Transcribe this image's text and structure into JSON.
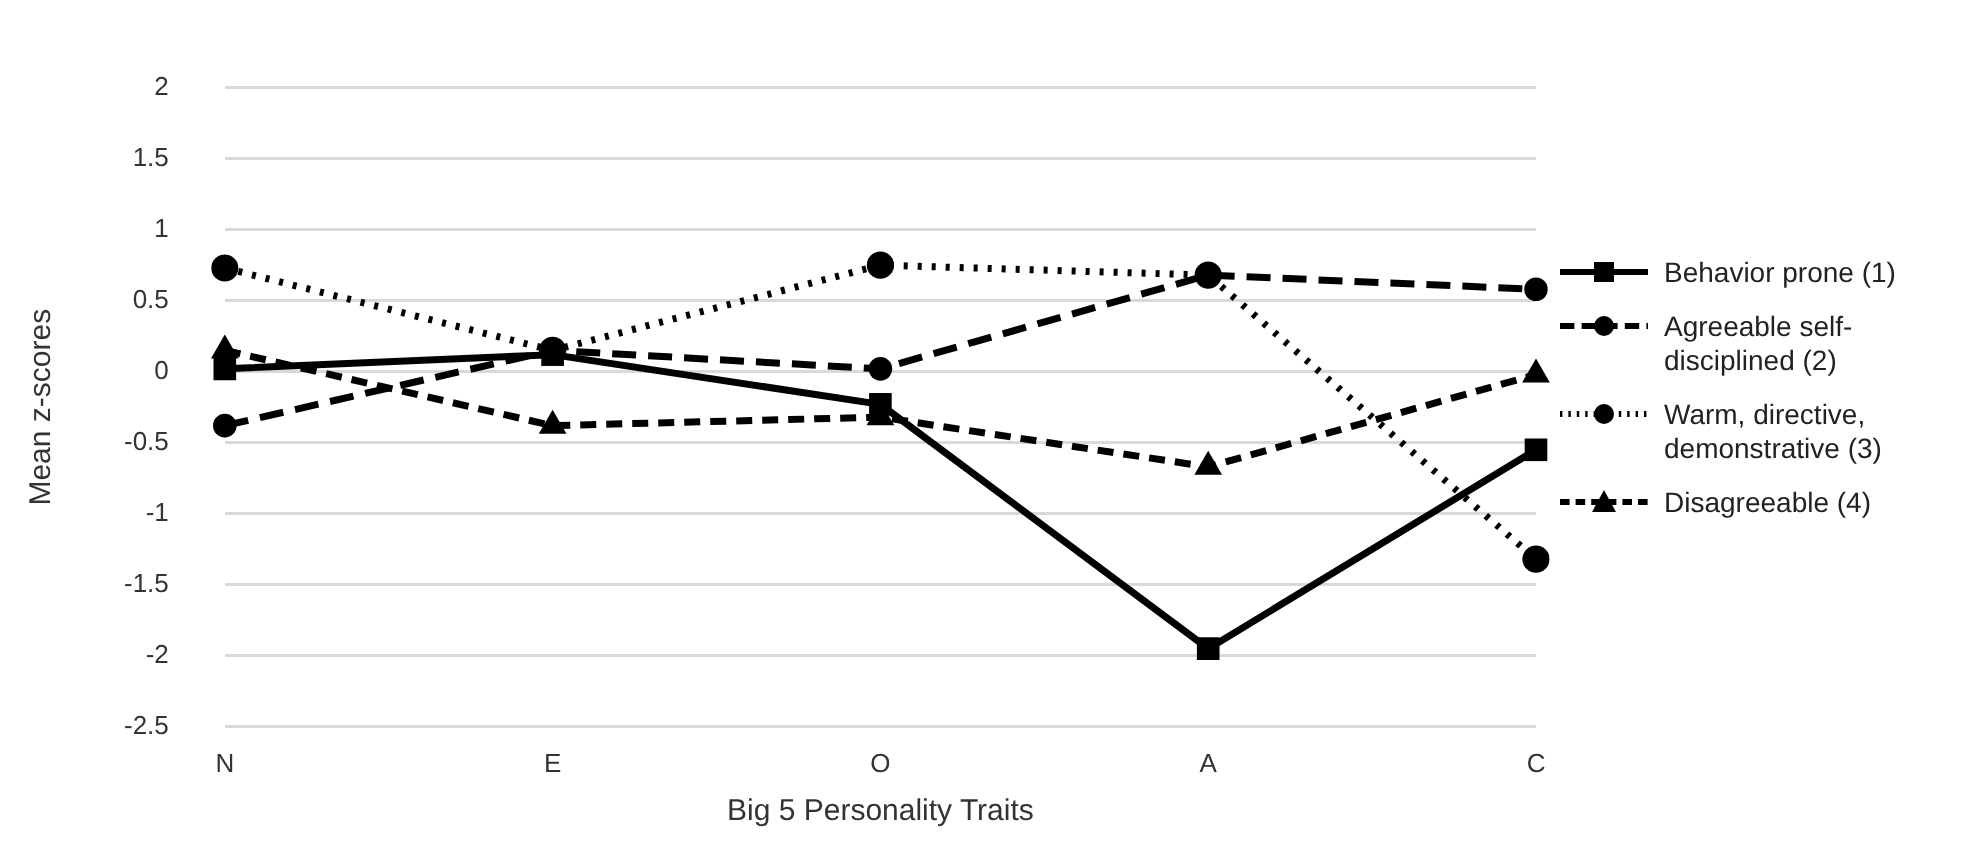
{
  "chart_data": {
    "type": "line",
    "xlabel": "Big 5 Personality Traits",
    "ylabel": "Mean z-scores",
    "categories": [
      "N",
      "E",
      "O",
      "A",
      "C"
    ],
    "series": [
      {
        "name": "Behavior prone (1)",
        "color": "#000000",
        "line_style": "solid",
        "marker": "square",
        "values": [
          0.02,
          0.12,
          -0.23,
          -1.95,
          -0.55
        ]
      },
      {
        "name": "Agreeable self-disciplined (2)",
        "color": "#000000",
        "line_style": "dashed",
        "marker": "circle",
        "values": [
          -0.38,
          0.15,
          0.02,
          0.68,
          0.58
        ]
      },
      {
        "name": "Warm, directive, demonstrative (3)",
        "color": "#000000",
        "line_style": "dotted",
        "marker": "circle",
        "values": [
          0.73,
          0.15,
          0.75,
          0.68,
          -1.32
        ]
      },
      {
        "name": "Disagreeable (4)",
        "color": "#000000",
        "line_style": "dashed",
        "marker": "triangle",
        "values": [
          0.15,
          -0.38,
          -0.32,
          -0.67,
          -0.02
        ]
      }
    ],
    "ylim": [
      -2.5,
      2
    ],
    "yticks": [
      -2.5,
      -2,
      -1.5,
      -1,
      -0.5,
      0,
      0.5,
      1,
      1.5,
      2
    ],
    "grid": "y",
    "legend": "right"
  }
}
